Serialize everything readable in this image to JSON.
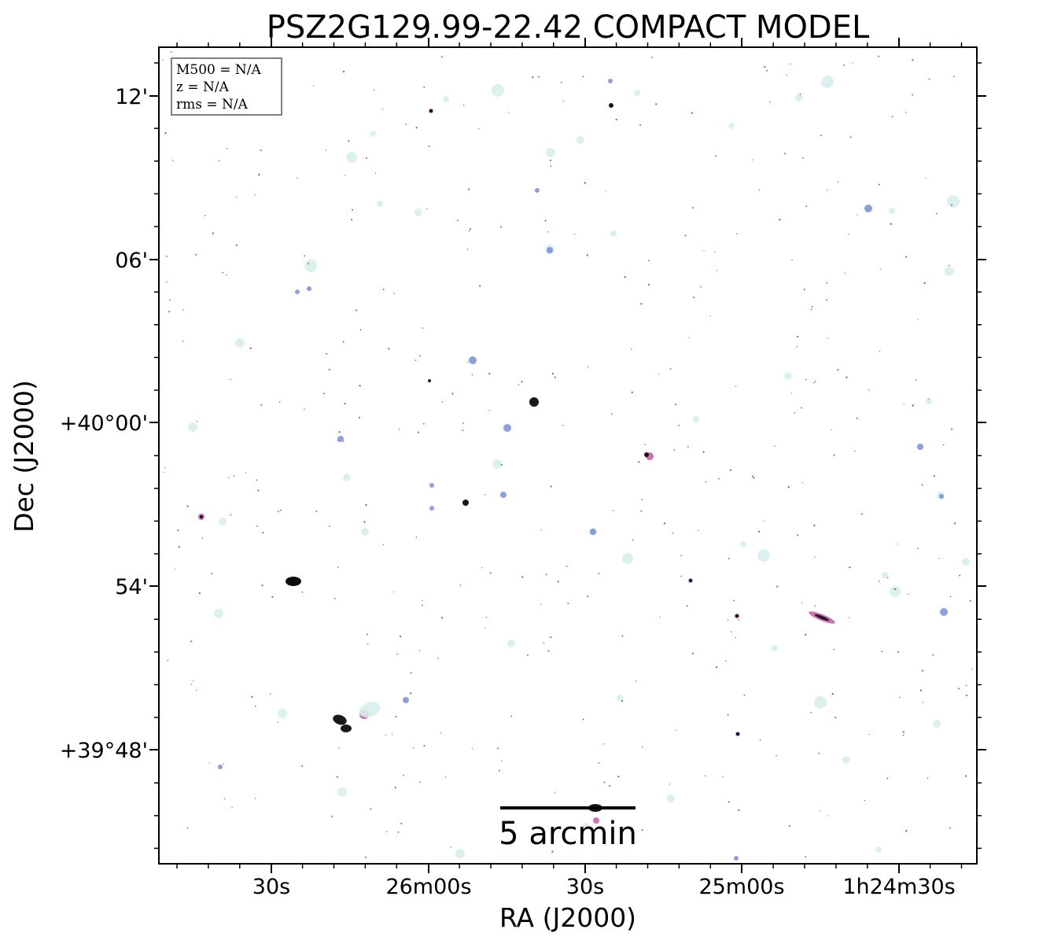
{
  "title": "PSZ2G129.99-22.42 COMPACT MODEL",
  "axes": {
    "xlabel": "RA (J2000)",
    "ylabel": "Dec (J2000)",
    "x_ticks": [
      "30s",
      "26m00s",
      "30s",
      "25m00s",
      "1h24m30s"
    ],
    "y_ticks": [
      "12'",
      "06'",
      "+40°00'",
      "54'",
      "+39°48'"
    ]
  },
  "info": {
    "m500": "M500 = N/A",
    "z": "z = N/A",
    "rms": "rms = N/A"
  },
  "scalebar": {
    "label": "5 arcmin"
  },
  "colors": {
    "faint": "#d6f0ec",
    "blue": "#6a7fd0",
    "magenta": "#c050a0",
    "core": "#000000"
  }
}
